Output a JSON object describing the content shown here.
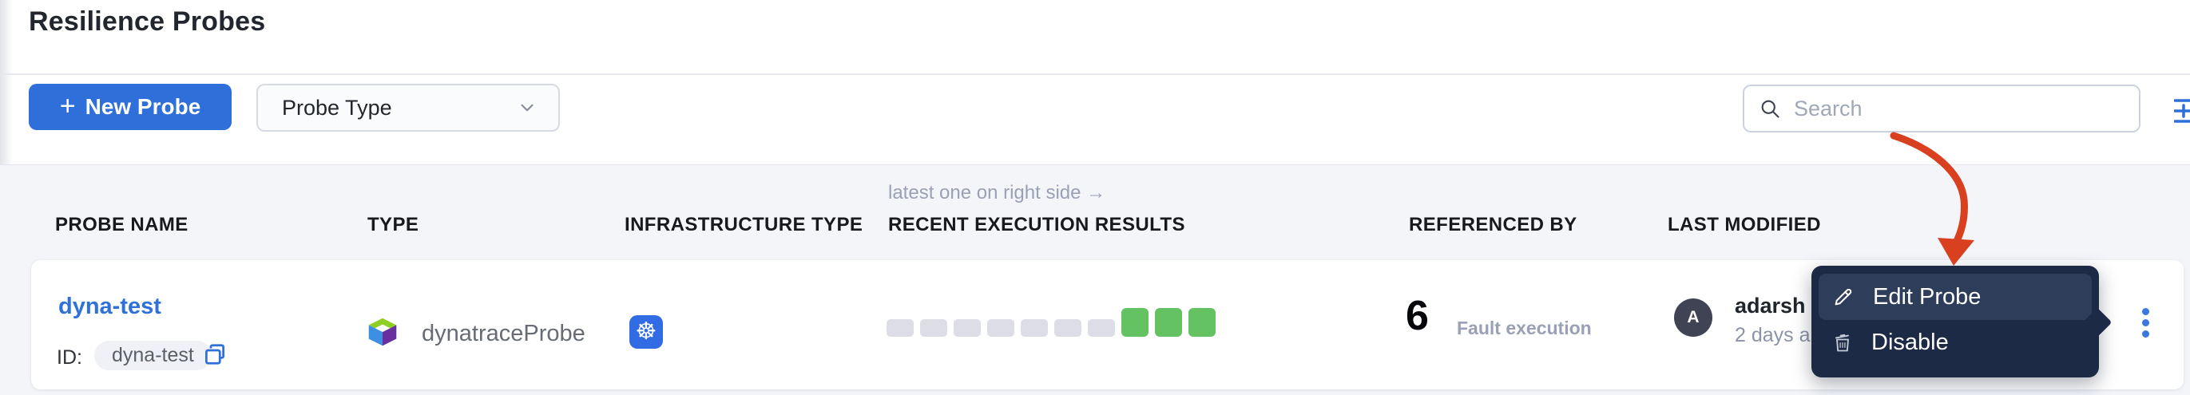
{
  "page": {
    "title": "Resilience Probes"
  },
  "toolbar": {
    "new_probe": {
      "plus": "+",
      "label": "New Probe"
    },
    "probe_type_filter": {
      "label": "Probe Type"
    },
    "search": {
      "placeholder": "Search"
    }
  },
  "table": {
    "annotation": "latest one on right side →",
    "columns": [
      "PROBE NAME",
      "TYPE",
      "INFRASTRUCTURE TYPE",
      "RECENT EXECUTION RESULTS",
      "REFERENCED BY",
      "LAST MODIFIED"
    ],
    "row": {
      "name": "dyna-test",
      "id_label": "ID:",
      "id_value": "dyna-test",
      "type_label": "dynatraceProbe",
      "type_icon": "dynatrace-logo",
      "infrastructure_type_icon": "kubernetes",
      "kubernetes_glyph": "☸",
      "executions": [
        "empty",
        "empty",
        "empty",
        "empty",
        "empty",
        "empty",
        "empty",
        "passed",
        "passed",
        "passed"
      ],
      "referenced_by": {
        "count": "6",
        "label": "Fault execution"
      },
      "last_modified": {
        "avatar_initial": "A",
        "user": "adarsh",
        "time": "2 days a"
      }
    }
  },
  "context_menu": {
    "items": [
      {
        "icon": "pencil-icon",
        "label": "Edit Probe"
      },
      {
        "icon": "trash-icon",
        "label": "Disable"
      }
    ]
  },
  "colors": {
    "accent_blue": "#2f6fd9",
    "link_blue": "#3071d9",
    "success_green": "#65c263",
    "empty_square_gray": "#dcdde6",
    "menu_bg": "#1c2a45",
    "menu_item_highlight": "#2e3e5a",
    "annotation_arrow_red": "#d8401f",
    "kubernetes_blue": "#326ce5"
  }
}
